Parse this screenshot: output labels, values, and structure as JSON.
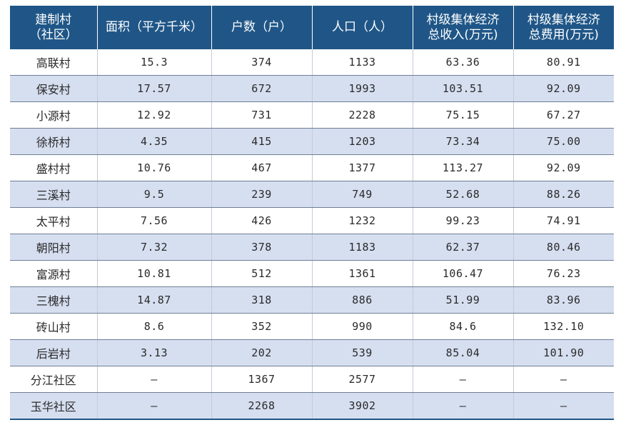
{
  "table": {
    "headers": [
      [
        "建制村",
        "（社区）"
      ],
      [
        "面积（平方千米）",
        ""
      ],
      [
        "户数（户）",
        ""
      ],
      [
        "人口（人）",
        ""
      ],
      [
        "村级集体经济",
        "总收入(万元)"
      ],
      [
        "村级集体经济",
        "总费用(万元)"
      ]
    ],
    "rows": [
      [
        "高联村",
        "15.3",
        "374",
        "1133",
        "63.36",
        "80.91"
      ],
      [
        "保安村",
        "17.57",
        "672",
        "1993",
        "103.51",
        "92.09"
      ],
      [
        "小源村",
        "12.92",
        "731",
        "2228",
        "75.15",
        "67.27"
      ],
      [
        "徐桥村",
        "4.35",
        "415",
        "1203",
        "73.34",
        "75.00"
      ],
      [
        "盛村村",
        "10.76",
        "467",
        "1377",
        "113.27",
        "92.09"
      ],
      [
        "三溪村",
        "9.5",
        "239",
        "749",
        "52.68",
        "88.26"
      ],
      [
        "太平村",
        "7.56",
        "426",
        "1232",
        "99.23",
        "74.91"
      ],
      [
        "朝阳村",
        "7.32",
        "378",
        "1183",
        "62.37",
        "80.46"
      ],
      [
        "富源村",
        "10.81",
        "512",
        "1361",
        "106.47",
        "76.23"
      ],
      [
        "三槐村",
        "14.87",
        "318",
        "886",
        "51.99",
        "83.96"
      ],
      [
        "砖山村",
        "8.6",
        "352",
        "990",
        "84.6",
        "132.10"
      ],
      [
        "后岩村",
        "3.13",
        "202",
        "539",
        "85.04",
        "101.90"
      ],
      [
        "分江社区",
        "—",
        "1367",
        "2577",
        "—",
        "—"
      ],
      [
        "玉华社区",
        "—",
        "2268",
        "3902",
        "—",
        "—"
      ]
    ]
  },
  "colors": {
    "header_bg": "#1f5687",
    "stripe_bg": "#d6dff0"
  }
}
